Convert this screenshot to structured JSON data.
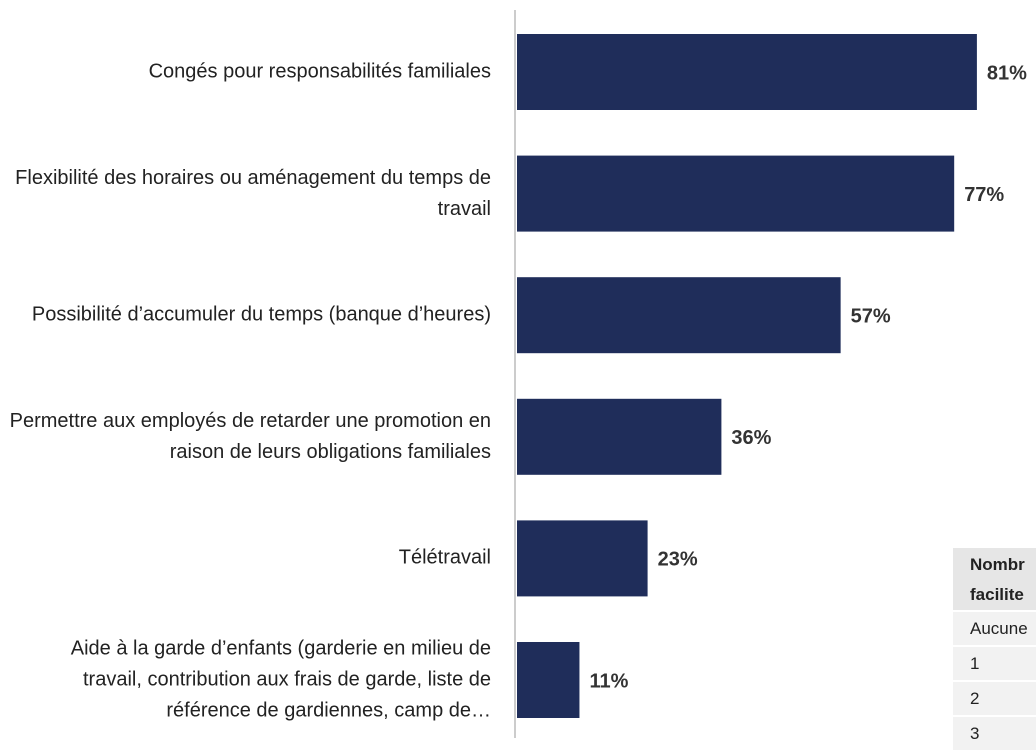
{
  "chart_data": {
    "type": "barh",
    "categories": [
      "Congés pour responsabilités familiales",
      "Flexibilité des horaires ou aménagement du temps de travail",
      "Possibilité d’accumuler du temps (banque d’heures)",
      "Permettre aux employés de retarder une promotion en raison de leurs obligations familiales",
      "Télétravail",
      "Aide à la garde d’enfants (garderie en milieu de travail, contribution aux frais de garde, liste de référence de gardiennes, camp de…"
    ],
    "values": [
      81,
      77,
      57,
      36,
      23,
      11
    ],
    "value_labels": [
      "81%",
      "77%",
      "57%",
      "36%",
      "23%",
      "11%"
    ],
    "color": "#1f2d5a",
    "xlim": [
      0,
      90
    ]
  },
  "table": {
    "header": [
      "Nombr",
      "facilite"
    ],
    "rows": [
      "Aucune",
      "1",
      "2",
      "3"
    ]
  }
}
